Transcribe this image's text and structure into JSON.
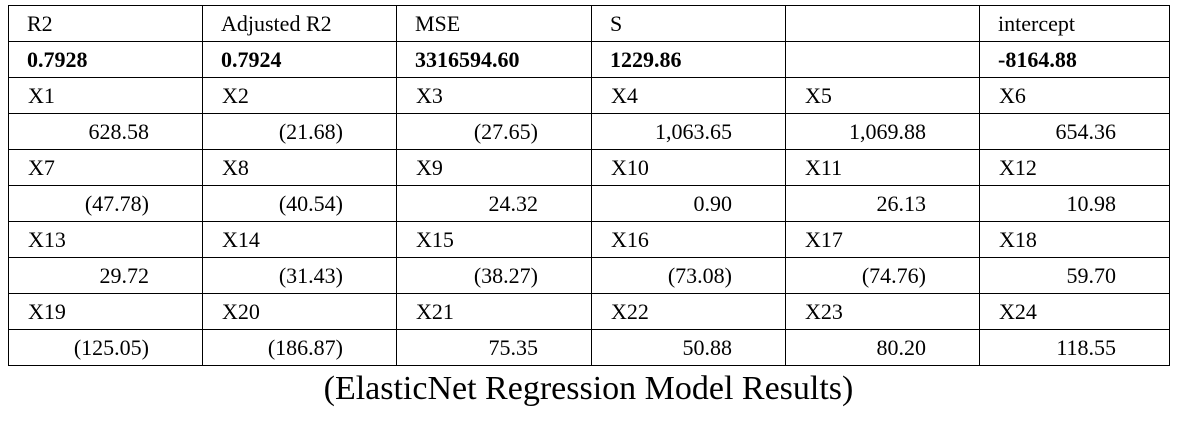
{
  "table": {
    "header": [
      "R2",
      "Adjusted R2",
      "MSE",
      "S",
      "",
      "intercept"
    ],
    "summary": [
      "0.7928",
      "0.7924",
      "3316594.60",
      "1229.86",
      "",
      "-8164.88"
    ],
    "groups": [
      {
        "vars": [
          "X1",
          "X2",
          "X3",
          "X4",
          "X5",
          "X6"
        ],
        "values": [
          "628.58",
          "(21.68)",
          "(27.65)",
          "1,063.65",
          "1,069.88",
          "654.36"
        ]
      },
      {
        "vars": [
          "X7",
          "X8",
          "X9",
          "X10",
          "X11",
          "X12"
        ],
        "values": [
          "(47.78)",
          "(40.54)",
          "24.32",
          "0.90",
          "26.13",
          "10.98"
        ]
      },
      {
        "vars": [
          "X13",
          "X14",
          "X15",
          "X16",
          "X17",
          "X18"
        ],
        "values": [
          "29.72",
          "(31.43)",
          "(38.27)",
          "(73.08)",
          "(74.76)",
          "59.70"
        ]
      },
      {
        "vars": [
          "X19",
          "X20",
          "X21",
          "X22",
          "X23",
          "X24"
        ],
        "values": [
          "(125.05)",
          "(186.87)",
          "75.35",
          "50.88",
          "80.20",
          "118.55"
        ]
      }
    ]
  },
  "caption": "(ElasticNet Regression Model Results)"
}
